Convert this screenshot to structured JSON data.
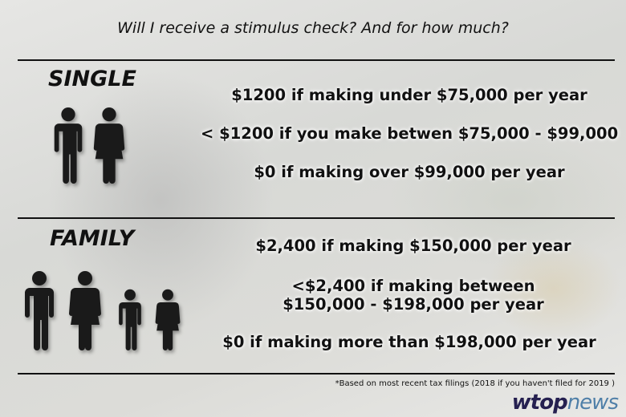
{
  "title": "Will I receive a stimulus check? And for how much?",
  "single": {
    "heading": "SINGLE",
    "lines": [
      "$1200 if making under $75,000 per year",
      "< $1200 if you make betwen $75,000 - $99,000",
      "$0 if making over $99,000 per year"
    ]
  },
  "family": {
    "heading": "FAMILY",
    "lines": [
      "$2,400 if making $150,000 per year",
      "<$2,400 if making between",
      "$150,000 - $198,000 per year",
      "$0 if making more than $198,000 per year"
    ]
  },
  "footnote": "*Based on most recent tax filings (2018 if you haven't filed for 2019 )",
  "logo": {
    "part1": "wtop",
    "part2": "news",
    "color1": "#252050",
    "color2": "#4f7fa8"
  },
  "icons": [
    "man-icon",
    "woman-icon",
    "boy-icon",
    "girl-icon"
  ]
}
